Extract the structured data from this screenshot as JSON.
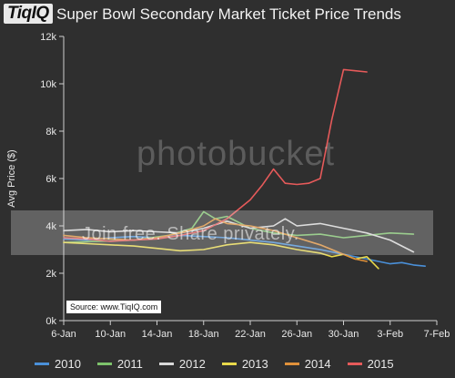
{
  "logo": {
    "text": "TiqIQ"
  },
  "chart_data": {
    "type": "line",
    "title": "Super Bowl Secondary Market Ticket Price Trends",
    "ylabel": "Avg Price ($)",
    "xlabel": "",
    "x_ticks": [
      "6-Jan",
      "10-Jan",
      "14-Jan",
      "18-Jan",
      "22-Jan",
      "26-Jan",
      "30-Jan",
      "3-Feb",
      "7-Feb"
    ],
    "y_ticks": [
      "0k",
      "2k",
      "4k",
      "6k",
      "8k",
      "10k",
      "12k"
    ],
    "xlim": [
      0,
      32
    ],
    "ylim": [
      0,
      12000
    ],
    "x_axis_start": "6-Jan",
    "grid": false,
    "legend_position": "bottom",
    "source": "Source: www.TiqIQ.com",
    "watermark": "Join free. Share privately.",
    "watermark_logo": "photobucket",
    "series": [
      {
        "name": "2010",
        "color": "#4a90d9",
        "x": [
          0,
          2,
          4,
          6,
          8,
          10,
          12,
          14,
          16,
          18,
          20,
          22,
          24,
          26,
          27,
          28,
          29,
          30,
          31
        ],
        "y": [
          3450,
          3400,
          3500,
          3550,
          3500,
          3600,
          3550,
          3500,
          3400,
          3300,
          3150,
          3000,
          2800,
          2600,
          2500,
          2400,
          2450,
          2350,
          2300
        ]
      },
      {
        "name": "2011",
        "color": "#7dc36b",
        "x": [
          0,
          3,
          6,
          9,
          11,
          12,
          13,
          14,
          16,
          18,
          20,
          22,
          24,
          26,
          28,
          30
        ],
        "y": [
          3300,
          3350,
          3400,
          3600,
          3900,
          4600,
          4300,
          4400,
          3900,
          3700,
          3600,
          3650,
          3500,
          3600,
          3700,
          3650
        ]
      },
      {
        "name": "2012",
        "color": "#d8d8d8",
        "x": [
          0,
          2,
          4,
          6,
          8,
          10,
          12,
          14,
          16,
          18,
          19,
          20,
          22,
          24,
          26,
          28,
          30
        ],
        "y": [
          3800,
          3850,
          3750,
          3800,
          3750,
          3700,
          3900,
          4200,
          3900,
          4000,
          4300,
          4000,
          4100,
          3900,
          3700,
          3400,
          2900
        ]
      },
      {
        "name": "2013",
        "color": "#e8d84a",
        "x": [
          0,
          2,
          4,
          6,
          8,
          10,
          12,
          14,
          16,
          18,
          20,
          22,
          23,
          24,
          25,
          26,
          27
        ],
        "y": [
          3300,
          3250,
          3200,
          3150,
          3050,
          2950,
          3000,
          3200,
          3300,
          3200,
          3000,
          2850,
          2700,
          2800,
          2600,
          2700,
          2200
        ]
      },
      {
        "name": "2014",
        "color": "#e0913a",
        "x": [
          0,
          2,
          4,
          6,
          8,
          10,
          12,
          13,
          14,
          16,
          18,
          20,
          22,
          23,
          24,
          25,
          26
        ],
        "y": [
          3600,
          3500,
          3450,
          3400,
          3500,
          3700,
          4000,
          4300,
          4100,
          4000,
          3800,
          3500,
          3200,
          3000,
          2800,
          2600,
          2500
        ]
      },
      {
        "name": "2015",
        "color": "#e65a5a",
        "x": [
          0,
          2,
          4,
          6,
          8,
          10,
          12,
          14,
          15,
          16,
          17,
          18,
          19,
          20,
          21,
          22,
          23,
          24,
          25,
          26
        ],
        "y": [
          3500,
          3450,
          3350,
          3400,
          3450,
          3600,
          3800,
          4300,
          4700,
          5100,
          5700,
          6400,
          5800,
          5750,
          5800,
          6000,
          8500,
          10600,
          10550,
          10500
        ]
      }
    ]
  }
}
